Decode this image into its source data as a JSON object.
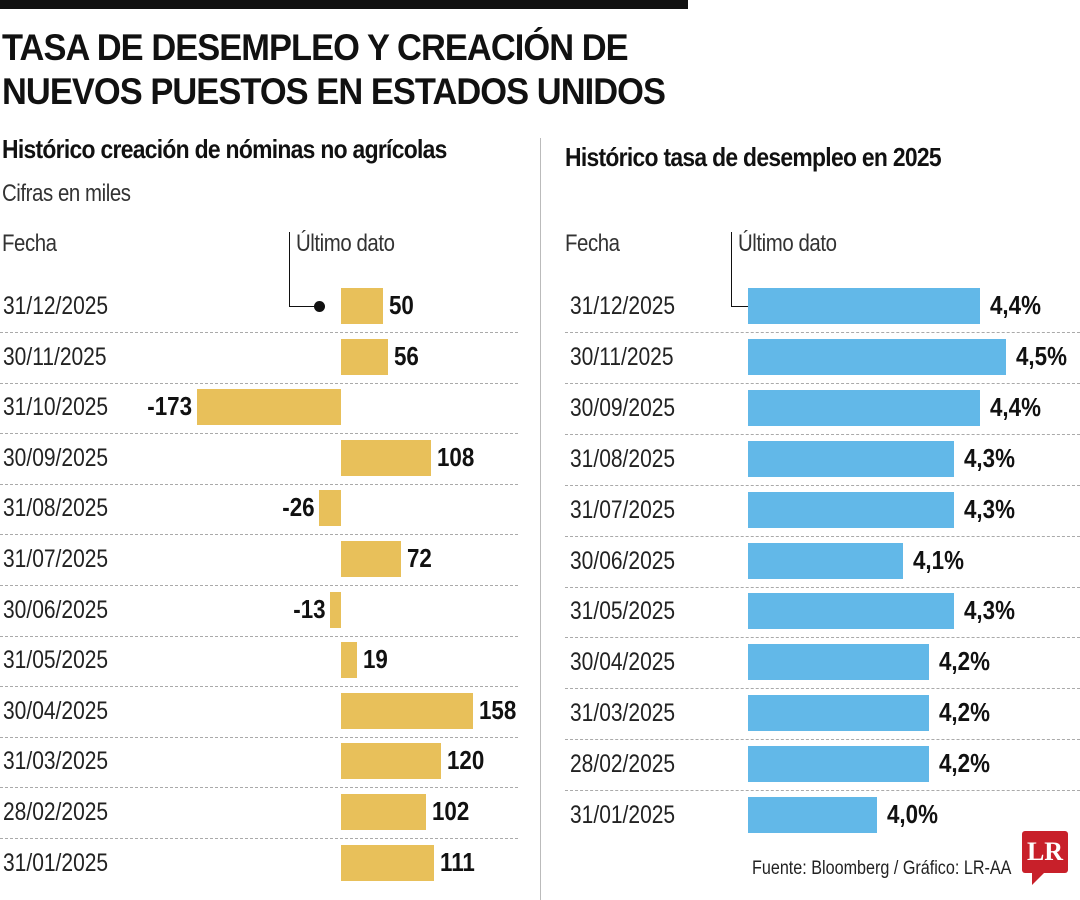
{
  "title_line1": "TASA DE DESEMPLEO Y CREACIÓN DE",
  "title_line2": "NUEVOS PUESTOS EN ESTADOS UNIDOS",
  "source": "Fuente: Bloomberg / Gráfico: LR-AA",
  "logo": "LR",
  "chart_data": [
    {
      "type": "bar",
      "orientation": "horizontal",
      "title": "Histórico creación de nóminas no agrícolas",
      "subtitle": "Cifras en miles",
      "category_header": "Fecha",
      "annotation": "Último dato",
      "color": "#E8C05A",
      "categories": [
        "31/12/2025",
        "30/11/2025",
        "31/10/2025",
        "30/09/2025",
        "31/08/2025",
        "31/07/2025",
        "30/06/2025",
        "31/05/2025",
        "30/04/2025",
        "31/03/2025",
        "28/02/2025",
        "31/01/2025"
      ],
      "values": [
        50,
        56,
        -173,
        108,
        -26,
        72,
        -13,
        19,
        158,
        120,
        102,
        111
      ],
      "labels": [
        "50",
        "56",
        "-173",
        "108",
        "-26",
        "72",
        "-13",
        "19",
        "158",
        "120",
        "102",
        "111"
      ]
    },
    {
      "type": "bar",
      "orientation": "horizontal",
      "title": "Histórico tasa de desempleo en 2025",
      "category_header": "Fecha",
      "annotation": "Último dato",
      "color": "#62B8E8",
      "categories": [
        "31/12/2025",
        "30/11/2025",
        "30/09/2025",
        "31/08/2025",
        "31/07/2025",
        "30/06/2025",
        "31/05/2025",
        "30/04/2025",
        "31/03/2025",
        "28/02/2025",
        "31/01/2025"
      ],
      "values": [
        4.4,
        4.5,
        4.4,
        4.3,
        4.3,
        4.1,
        4.3,
        4.2,
        4.2,
        4.2,
        4.0
      ],
      "labels": [
        "4,4%",
        "4,5%",
        "4,4%",
        "4,3%",
        "4,3%",
        "4,1%",
        "4,3%",
        "4,2%",
        "4,2%",
        "4,2%",
        "4,0%"
      ]
    }
  ]
}
